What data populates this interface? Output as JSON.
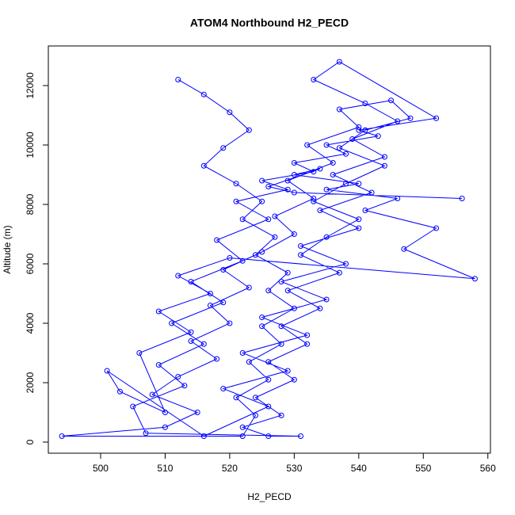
{
  "chart_data": {
    "type": "line",
    "title": "ATOM4 Northbound H2_PECD",
    "x_label": "H2_PECD",
    "y_label": "Altitude (m)",
    "marker": "circle",
    "xlim": [
      491.9,
      560.4
    ],
    "ylim": [
      -373,
      13333
    ],
    "xticks": [
      500,
      510,
      520,
      530,
      540,
      550,
      560
    ],
    "yticks": [
      0,
      2000,
      4000,
      6000,
      8000,
      10000,
      12000
    ],
    "series": [
      {
        "color": "#0000ff",
        "x": [
          512,
          516,
          520,
          523,
          519,
          516,
          521,
          525,
          522,
          527,
          524,
          529,
          526,
          530,
          525,
          528,
          523,
          526,
          521,
          524,
          522,
          494,
          510,
          515,
          508,
          512,
          518,
          514,
          520,
          517,
          523,
          519,
          525,
          530,
          527,
          533,
          529,
          536,
          532,
          540,
          537,
          545,
          548,
          541,
          537,
          544,
          538,
          533,
          540,
          535,
          531,
          537,
          529,
          534,
          528,
          532,
          526,
          530,
          524,
          528,
          522,
          526,
          531,
          507,
          505,
          513,
          509,
          516,
          511,
          519,
          514,
          522,
          518,
          526,
          521,
          529,
          525,
          533,
          530,
          538,
          535,
          543,
          540,
          552,
          537,
          533,
          541,
          546,
          539,
          544,
          536,
          542,
          534,
          540,
          531,
          538,
          528,
          535,
          525,
          532,
          522,
          529,
          519,
          526,
          516,
          501,
          503,
          510,
          506,
          514,
          509,
          517,
          512,
          520,
          558,
          547,
          552,
          541,
          546,
          535,
          540,
          530,
          534,
          526,
          530,
          556
        ],
        "values": [
          12200,
          11700,
          11100,
          10500,
          9900,
          9300,
          8700,
          8100,
          7500,
          6900,
          6300,
          5700,
          5100,
          4500,
          3900,
          3300,
          2700,
          2100,
          1500,
          900,
          200,
          200,
          500,
          1000,
          1600,
          2200,
          2800,
          3400,
          4000,
          4600,
          5200,
          5800,
          6400,
          7000,
          7600,
          8200,
          8800,
          9400,
          10000,
          10600,
          11200,
          11500,
          10900,
          10500,
          9900,
          9300,
          8700,
          8100,
          7500,
          6900,
          6300,
          5700,
          5100,
          4500,
          3900,
          3300,
          2700,
          2100,
          1500,
          900,
          500,
          200,
          200,
          300,
          1200,
          1900,
          2600,
          3300,
          4000,
          4700,
          5400,
          6100,
          6800,
          7500,
          8100,
          8500,
          8800,
          9100,
          9400,
          9700,
          10000,
          10300,
          10500,
          10900,
          12800,
          12200,
          11400,
          10800,
          10200,
          9600,
          9000,
          8400,
          7800,
          7200,
          6600,
          6000,
          5400,
          4800,
          4200,
          3600,
          3000,
          2400,
          1800,
          1200,
          200,
          2400,
          1700,
          1000,
          3000,
          3700,
          4400,
          5000,
          5600,
          6200,
          5500,
          6500,
          7200,
          7800,
          8200,
          8500,
          8700,
          9000,
          9200,
          8600,
          8400,
          8200
        ]
      }
    ]
  }
}
